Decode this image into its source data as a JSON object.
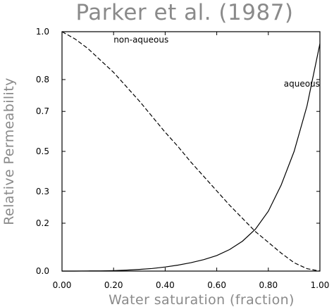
{
  "chart_data": {
    "type": "line",
    "title": "Parker et al. (1987)",
    "xlabel": "Water saturation (fraction)",
    "ylabel": "Relative Permeability",
    "xlim": [
      0,
      1
    ],
    "ylim": [
      0,
      1
    ],
    "grid": false,
    "x_ticks": [
      "0.00",
      "0.20",
      "0.40",
      "0.60",
      "0.80",
      "1.00"
    ],
    "y_ticks": [
      "0.0",
      "0.2",
      "0.3",
      "0.5",
      "0.7",
      "0.8",
      "1.0"
    ],
    "x_tick_values": [
      0,
      0.2,
      0.4,
      0.6,
      0.8,
      1.0
    ],
    "y_tick_values": [
      0,
      0.2,
      0.333,
      0.5,
      0.667,
      0.8,
      1.0
    ],
    "x": [
      0,
      0.05,
      0.1,
      0.15,
      0.2,
      0.25,
      0.3,
      0.35,
      0.4,
      0.45,
      0.5,
      0.55,
      0.6,
      0.65,
      0.7,
      0.75,
      0.8,
      0.85,
      0.9,
      0.95,
      1.0
    ],
    "series": [
      {
        "name": "non-aqueous",
        "style": "dashed",
        "color": "#000000",
        "values": [
          1.0,
          0.97,
          0.93,
          0.88,
          0.83,
          0.77,
          0.71,
          0.645,
          0.58,
          0.52,
          0.455,
          0.395,
          0.335,
          0.275,
          0.22,
          0.165,
          0.12,
          0.075,
          0.035,
          0.01,
          0.0
        ]
      },
      {
        "name": "aqueous",
        "style": "solid",
        "color": "#000000",
        "values": [
          0.0,
          0.0,
          0.0005,
          0.001,
          0.002,
          0.004,
          0.007,
          0.011,
          0.017,
          0.025,
          0.035,
          0.048,
          0.065,
          0.09,
          0.125,
          0.175,
          0.25,
          0.36,
          0.5,
          0.69,
          0.95
        ]
      }
    ],
    "annotations": [
      {
        "text": "non-aqueous",
        "x": 0.2,
        "y": 0.955
      },
      {
        "text": "aqueous",
        "x": 0.86,
        "y": 0.77
      }
    ]
  }
}
